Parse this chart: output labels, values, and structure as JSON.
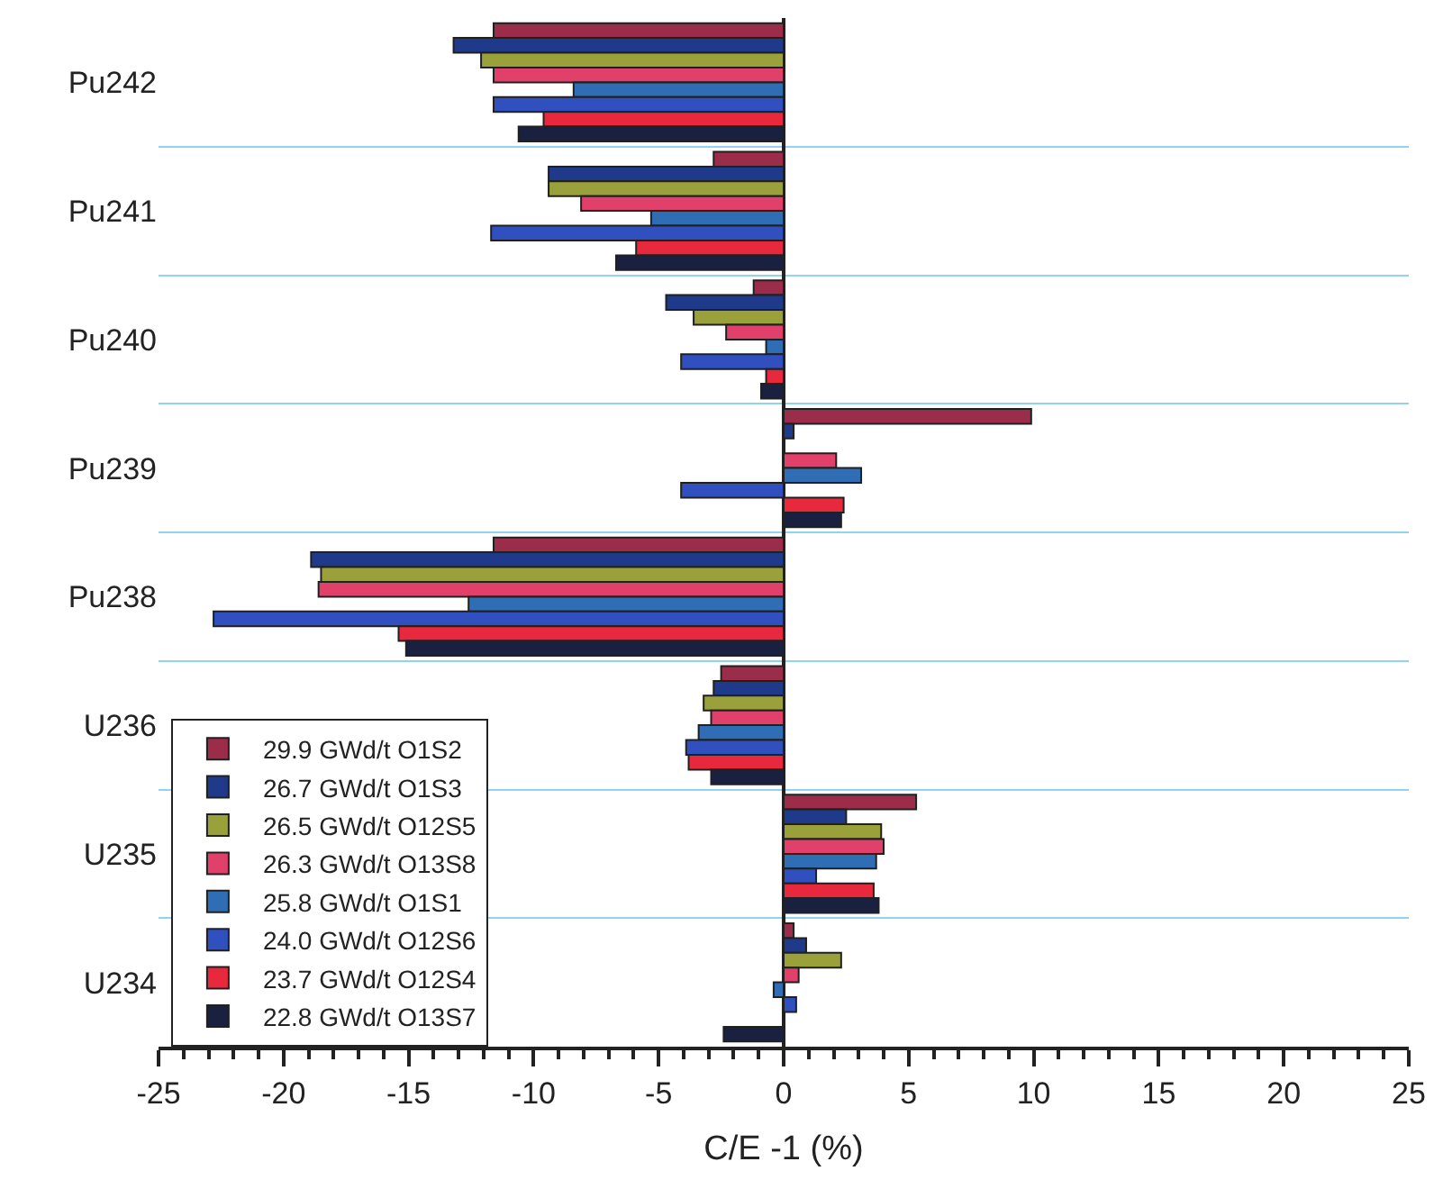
{
  "chart_data": {
    "type": "bar",
    "orientation": "horizontal",
    "xlabel": "C/E -1 (%)",
    "categories": [
      "Pu242",
      "Pu241",
      "Pu240",
      "Pu239",
      "Pu238",
      "U236",
      "U235",
      "U234"
    ],
    "xlim": [
      -25,
      25
    ],
    "xticks": [
      -25,
      -20,
      -15,
      -10,
      -5,
      0,
      5,
      10,
      15,
      20,
      25
    ],
    "grid": "y",
    "legend": "bottom left",
    "series": [
      {
        "name": "29.9 GWd/t O1S2",
        "color": "#9b2d4a",
        "values": [
          -11.6,
          -2.8,
          -1.2,
          9.9,
          -11.6,
          -2.5,
          5.3,
          0.4
        ]
      },
      {
        "name": "26.7 GWd/t O1S3",
        "color": "#1f3a8a",
        "values": [
          -13.2,
          -9.4,
          -4.7,
          0.4,
          -18.9,
          -2.8,
          2.5,
          0.9
        ]
      },
      {
        "name": "26.5 GWd/t O12S5",
        "color": "#9aa03a",
        "values": [
          -12.1,
          -9.4,
          -3.6,
          null,
          -18.5,
          -3.2,
          3.9,
          2.3
        ]
      },
      {
        "name": "26.3 GWd/t O13S8",
        "color": "#e0406a",
        "values": [
          -11.6,
          -8.1,
          -2.3,
          2.1,
          -18.6,
          -2.9,
          4.0,
          0.6
        ]
      },
      {
        "name": "25.8 GWd/t O1S1",
        "color": "#2f6db5",
        "values": [
          -8.4,
          -5.3,
          -0.7,
          3.1,
          -12.6,
          -3.4,
          3.7,
          -0.4
        ]
      },
      {
        "name": "24.0 GWd/t O12S6",
        "color": "#3050c0",
        "values": [
          -11.6,
          -11.7,
          -4.1,
          -4.1,
          -22.8,
          -3.9,
          1.3,
          0.5
        ]
      },
      {
        "name": "23.7 GWd/t O12S4",
        "color": "#e8283c",
        "values": [
          -9.6,
          -5.9,
          -0.7,
          2.4,
          -15.4,
          -3.8,
          3.6,
          null
        ]
      },
      {
        "name": "22.8 GWd/t O13S7",
        "color": "#1a2040",
        "values": [
          -10.6,
          -6.7,
          -0.9,
          2.3,
          -15.1,
          -2.9,
          3.8,
          -2.4
        ]
      }
    ]
  }
}
